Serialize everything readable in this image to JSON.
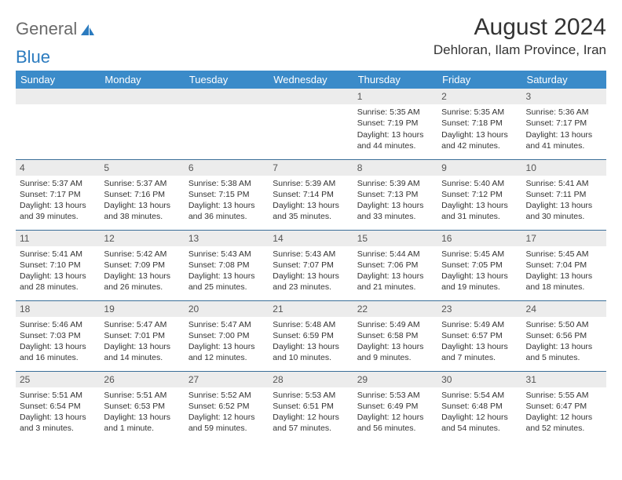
{
  "brand": {
    "part1": "General",
    "part2": "Blue"
  },
  "title": "August 2024",
  "location": "Dehloran, Ilam Province, Iran",
  "colors": {
    "header_bg": "#3b8bc9",
    "header_text": "#ffffff",
    "daynum_bg": "#ececec",
    "row_border": "#3b6f99",
    "logo_accent": "#2b7bbf",
    "body_text": "#333333"
  },
  "day_names": [
    "Sunday",
    "Monday",
    "Tuesday",
    "Wednesday",
    "Thursday",
    "Friday",
    "Saturday"
  ],
  "weeks": [
    [
      null,
      null,
      null,
      null,
      {
        "n": "1",
        "sr": "Sunrise: 5:35 AM",
        "ss": "Sunset: 7:19 PM",
        "dl": "Daylight: 13 hours and 44 minutes."
      },
      {
        "n": "2",
        "sr": "Sunrise: 5:35 AM",
        "ss": "Sunset: 7:18 PM",
        "dl": "Daylight: 13 hours and 42 minutes."
      },
      {
        "n": "3",
        "sr": "Sunrise: 5:36 AM",
        "ss": "Sunset: 7:17 PM",
        "dl": "Daylight: 13 hours and 41 minutes."
      }
    ],
    [
      {
        "n": "4",
        "sr": "Sunrise: 5:37 AM",
        "ss": "Sunset: 7:17 PM",
        "dl": "Daylight: 13 hours and 39 minutes."
      },
      {
        "n": "5",
        "sr": "Sunrise: 5:37 AM",
        "ss": "Sunset: 7:16 PM",
        "dl": "Daylight: 13 hours and 38 minutes."
      },
      {
        "n": "6",
        "sr": "Sunrise: 5:38 AM",
        "ss": "Sunset: 7:15 PM",
        "dl": "Daylight: 13 hours and 36 minutes."
      },
      {
        "n": "7",
        "sr": "Sunrise: 5:39 AM",
        "ss": "Sunset: 7:14 PM",
        "dl": "Daylight: 13 hours and 35 minutes."
      },
      {
        "n": "8",
        "sr": "Sunrise: 5:39 AM",
        "ss": "Sunset: 7:13 PM",
        "dl": "Daylight: 13 hours and 33 minutes."
      },
      {
        "n": "9",
        "sr": "Sunrise: 5:40 AM",
        "ss": "Sunset: 7:12 PM",
        "dl": "Daylight: 13 hours and 31 minutes."
      },
      {
        "n": "10",
        "sr": "Sunrise: 5:41 AM",
        "ss": "Sunset: 7:11 PM",
        "dl": "Daylight: 13 hours and 30 minutes."
      }
    ],
    [
      {
        "n": "11",
        "sr": "Sunrise: 5:41 AM",
        "ss": "Sunset: 7:10 PM",
        "dl": "Daylight: 13 hours and 28 minutes."
      },
      {
        "n": "12",
        "sr": "Sunrise: 5:42 AM",
        "ss": "Sunset: 7:09 PM",
        "dl": "Daylight: 13 hours and 26 minutes."
      },
      {
        "n": "13",
        "sr": "Sunrise: 5:43 AM",
        "ss": "Sunset: 7:08 PM",
        "dl": "Daylight: 13 hours and 25 minutes."
      },
      {
        "n": "14",
        "sr": "Sunrise: 5:43 AM",
        "ss": "Sunset: 7:07 PM",
        "dl": "Daylight: 13 hours and 23 minutes."
      },
      {
        "n": "15",
        "sr": "Sunrise: 5:44 AM",
        "ss": "Sunset: 7:06 PM",
        "dl": "Daylight: 13 hours and 21 minutes."
      },
      {
        "n": "16",
        "sr": "Sunrise: 5:45 AM",
        "ss": "Sunset: 7:05 PM",
        "dl": "Daylight: 13 hours and 19 minutes."
      },
      {
        "n": "17",
        "sr": "Sunrise: 5:45 AM",
        "ss": "Sunset: 7:04 PM",
        "dl": "Daylight: 13 hours and 18 minutes."
      }
    ],
    [
      {
        "n": "18",
        "sr": "Sunrise: 5:46 AM",
        "ss": "Sunset: 7:03 PM",
        "dl": "Daylight: 13 hours and 16 minutes."
      },
      {
        "n": "19",
        "sr": "Sunrise: 5:47 AM",
        "ss": "Sunset: 7:01 PM",
        "dl": "Daylight: 13 hours and 14 minutes."
      },
      {
        "n": "20",
        "sr": "Sunrise: 5:47 AM",
        "ss": "Sunset: 7:00 PM",
        "dl": "Daylight: 13 hours and 12 minutes."
      },
      {
        "n": "21",
        "sr": "Sunrise: 5:48 AM",
        "ss": "Sunset: 6:59 PM",
        "dl": "Daylight: 13 hours and 10 minutes."
      },
      {
        "n": "22",
        "sr": "Sunrise: 5:49 AM",
        "ss": "Sunset: 6:58 PM",
        "dl": "Daylight: 13 hours and 9 minutes."
      },
      {
        "n": "23",
        "sr": "Sunrise: 5:49 AM",
        "ss": "Sunset: 6:57 PM",
        "dl": "Daylight: 13 hours and 7 minutes."
      },
      {
        "n": "24",
        "sr": "Sunrise: 5:50 AM",
        "ss": "Sunset: 6:56 PM",
        "dl": "Daylight: 13 hours and 5 minutes."
      }
    ],
    [
      {
        "n": "25",
        "sr": "Sunrise: 5:51 AM",
        "ss": "Sunset: 6:54 PM",
        "dl": "Daylight: 13 hours and 3 minutes."
      },
      {
        "n": "26",
        "sr": "Sunrise: 5:51 AM",
        "ss": "Sunset: 6:53 PM",
        "dl": "Daylight: 13 hours and 1 minute."
      },
      {
        "n": "27",
        "sr": "Sunrise: 5:52 AM",
        "ss": "Sunset: 6:52 PM",
        "dl": "Daylight: 12 hours and 59 minutes."
      },
      {
        "n": "28",
        "sr": "Sunrise: 5:53 AM",
        "ss": "Sunset: 6:51 PM",
        "dl": "Daylight: 12 hours and 57 minutes."
      },
      {
        "n": "29",
        "sr": "Sunrise: 5:53 AM",
        "ss": "Sunset: 6:49 PM",
        "dl": "Daylight: 12 hours and 56 minutes."
      },
      {
        "n": "30",
        "sr": "Sunrise: 5:54 AM",
        "ss": "Sunset: 6:48 PM",
        "dl": "Daylight: 12 hours and 54 minutes."
      },
      {
        "n": "31",
        "sr": "Sunrise: 5:55 AM",
        "ss": "Sunset: 6:47 PM",
        "dl": "Daylight: 12 hours and 52 minutes."
      }
    ]
  ]
}
